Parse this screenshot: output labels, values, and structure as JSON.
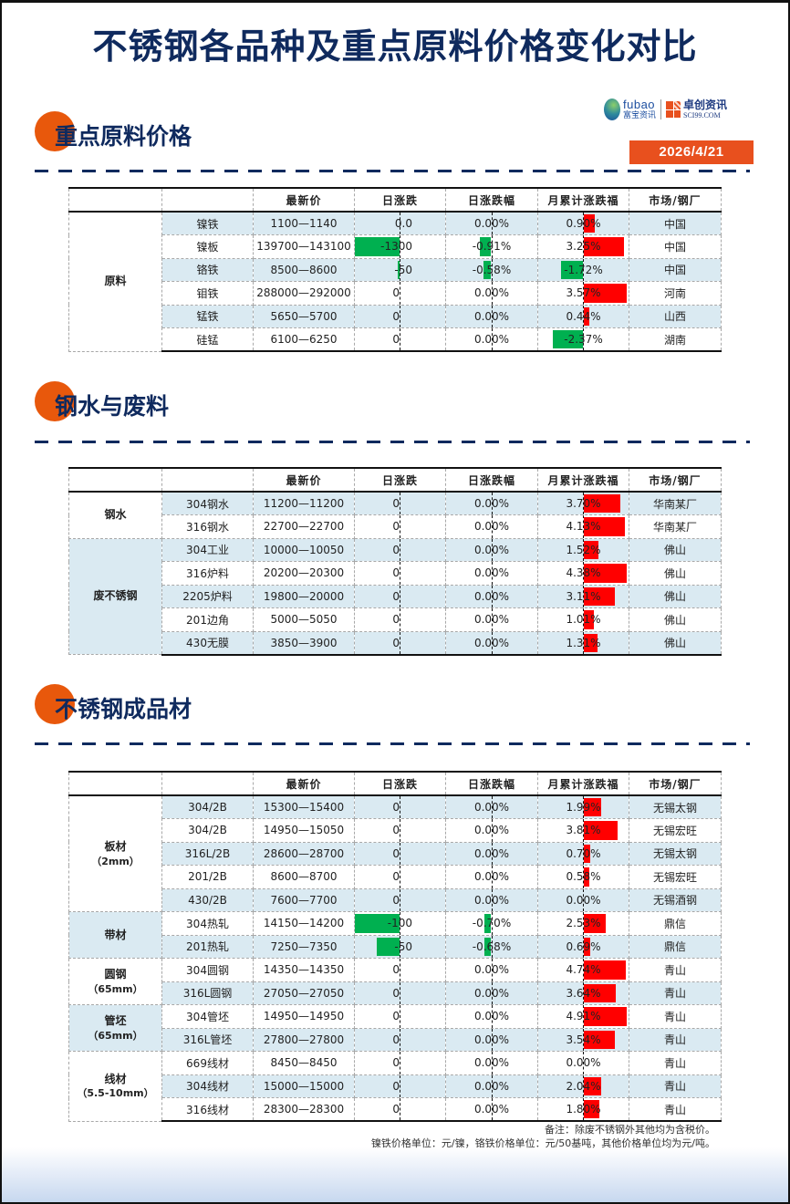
{
  "title": "不锈钢各品种及重点原料价格变化对比",
  "logos": {
    "fubao_en": "fubao",
    "fubao_cn": "富宝资讯",
    "sci_cn": "卓创资讯",
    "sci_en": "SCI99.COM"
  },
  "date": "2026/4/21",
  "colors": {
    "title": "#0f2a5e",
    "accent": "#e8501e",
    "shade": "#daeaf2",
    "neg_bar": "#00b050",
    "pos_bar": "#ff0000"
  },
  "headers": [
    "",
    "",
    "最新价",
    "日涨跌",
    "日涨跌幅",
    "月累计涨跌福",
    "市场/钢厂"
  ],
  "sections": [
    {
      "title": "重点原料价格",
      "groups": [
        {
          "name": "原料",
          "sub": "",
          "rows": [
            {
              "name": "镍铁",
              "price": "1100—1140",
              "dchg": "0.0",
              "dchg_bar": 0,
              "dpct": "0.00%",
              "dpct_bar": 0,
              "mpct": "0.90%",
              "mpct_bar": 12,
              "market": "中国"
            },
            {
              "name": "镍板",
              "price": "139700—143100",
              "dchg": "-1300",
              "dchg_bar": -49,
              "dpct": "-0.91%",
              "dpct_bar": -12,
              "mpct": "3.25%",
              "mpct_bar": 44,
              "market": "中国"
            },
            {
              "name": "铬铁",
              "price": "8500—8600",
              "dchg": "-50",
              "dchg_bar": -2,
              "dpct": "-0.58%",
              "dpct_bar": -8,
              "mpct": "-1.72%",
              "mpct_bar": -24,
              "market": "中国"
            },
            {
              "name": "钼铁",
              "price": "288000—292000",
              "dchg": "0",
              "dchg_bar": 0,
              "dpct": "0.00%",
              "dpct_bar": 0,
              "mpct": "3.57%",
              "mpct_bar": 47,
              "market": "河南"
            },
            {
              "name": "锰铁",
              "price": "5650—5700",
              "dchg": "0",
              "dchg_bar": 0,
              "dpct": "0.00%",
              "dpct_bar": 0,
              "mpct": "0.44%",
              "mpct_bar": 6,
              "market": "山西"
            },
            {
              "name": "硅锰",
              "price": "6100—6250",
              "dchg": "0",
              "dchg_bar": 0,
              "dpct": "0.00%",
              "dpct_bar": 0,
              "mpct": "-2.37%",
              "mpct_bar": -33,
              "market": "湖南"
            }
          ]
        }
      ]
    },
    {
      "title": "钢水与废料",
      "groups": [
        {
          "name": "钢水",
          "sub": "",
          "rows": [
            {
              "name": "304钢水",
              "price": "11200—11200",
              "dchg": "0",
              "dchg_bar": 0,
              "dpct": "0.00%",
              "dpct_bar": 0,
              "mpct": "3.70%",
              "mpct_bar": 40,
              "market": "华南某厂"
            },
            {
              "name": "316钢水",
              "price": "22700—22700",
              "dchg": "0",
              "dchg_bar": 0,
              "dpct": "0.00%",
              "dpct_bar": 0,
              "mpct": "4.13%",
              "mpct_bar": 45,
              "market": "华南某厂"
            }
          ]
        },
        {
          "name": "废不锈钢",
          "sub": "",
          "rows": [
            {
              "name": "304工业",
              "price": "10000—10050",
              "dchg": "0",
              "dchg_bar": 0,
              "dpct": "0.00%",
              "dpct_bar": 0,
              "mpct": "1.52%",
              "mpct_bar": 16,
              "market": "佛山"
            },
            {
              "name": "316炉料",
              "price": "20200—20300",
              "dchg": "0",
              "dchg_bar": 0,
              "dpct": "0.00%",
              "dpct_bar": 0,
              "mpct": "4.38%",
              "mpct_bar": 47,
              "market": "佛山"
            },
            {
              "name": "2205炉料",
              "price": "19800—20000",
              "dchg": "0",
              "dchg_bar": 0,
              "dpct": "0.00%",
              "dpct_bar": 0,
              "mpct": "3.11%",
              "mpct_bar": 34,
              "market": "佛山"
            },
            {
              "name": "201边角",
              "price": "5000—5050",
              "dchg": "0",
              "dchg_bar": 0,
              "dpct": "0.00%",
              "dpct_bar": 0,
              "mpct": "1.01%",
              "mpct_bar": 11,
              "market": "佛山"
            },
            {
              "name": "430无膜",
              "price": "3850—3900",
              "dchg": "0",
              "dchg_bar": 0,
              "dpct": "0.00%",
              "dpct_bar": 0,
              "mpct": "1.31%",
              "mpct_bar": 15,
              "market": "佛山"
            }
          ]
        }
      ]
    },
    {
      "title": "不锈钢成品材",
      "groups": [
        {
          "name": "板材",
          "sub": "（2mm）",
          "rows": [
            {
              "name": "304/2B",
              "price": "15300—15400",
              "dchg": "0",
              "dchg_bar": 0,
              "dpct": "0.00%",
              "dpct_bar": 0,
              "mpct": "1.99%",
              "mpct_bar": 19,
              "market": "无锡太钢"
            },
            {
              "name": "304/2B",
              "price": "14950—15050",
              "dchg": "0",
              "dchg_bar": 0,
              "dpct": "0.00%",
              "dpct_bar": 0,
              "mpct": "3.81%",
              "mpct_bar": 37,
              "market": "无锡宏旺"
            },
            {
              "name": "316L/2B",
              "price": "28600—28700",
              "dchg": "0",
              "dchg_bar": 0,
              "dpct": "0.00%",
              "dpct_bar": 0,
              "mpct": "0.70%",
              "mpct_bar": 7,
              "market": "无锡太钢"
            },
            {
              "name": "201/2B",
              "price": "8600—8700",
              "dchg": "0",
              "dchg_bar": 0,
              "dpct": "0.00%",
              "dpct_bar": 0,
              "mpct": "0.58%",
              "mpct_bar": 6,
              "market": "无锡宏旺"
            },
            {
              "name": "430/2B",
              "price": "7600—7700",
              "dchg": "0",
              "dchg_bar": 0,
              "dpct": "0.00%",
              "dpct_bar": 0,
              "mpct": "0.00%",
              "mpct_bar": 0,
              "market": "无锡酒钢"
            }
          ]
        },
        {
          "name": "带材",
          "sub": "",
          "rows": [
            {
              "name": "304热轧",
              "price": "14150—14200",
              "dchg": "-100",
              "dchg_bar": -49,
              "dpct": "-0.70%",
              "dpct_bar": -7,
              "mpct": "2.53%",
              "mpct_bar": 24,
              "market": "鼎信"
            },
            {
              "name": "201热轧",
              "price": "7250—7350",
              "dchg": "-50",
              "dchg_bar": -25,
              "dpct": "-0.68%",
              "dpct_bar": -7,
              "mpct": "0.69%",
              "mpct_bar": 7,
              "market": "鼎信"
            }
          ]
        },
        {
          "name": "圆钢",
          "sub": "（65mm）",
          "rows": [
            {
              "name": "304圆钢",
              "price": "14350—14350",
              "dchg": "0",
              "dchg_bar": 0,
              "dpct": "0.00%",
              "dpct_bar": 0,
              "mpct": "4.74%",
              "mpct_bar": 46,
              "market": "青山"
            },
            {
              "name": "316L圆钢",
              "price": "27050—27050",
              "dchg": "0",
              "dchg_bar": 0,
              "dpct": "0.00%",
              "dpct_bar": 0,
              "mpct": "3.64%",
              "mpct_bar": 35,
              "market": "青山"
            }
          ]
        },
        {
          "name": "管坯",
          "sub": "（65mm）",
          "rows": [
            {
              "name": "304管坯",
              "price": "14950—14950",
              "dchg": "0",
              "dchg_bar": 0,
              "dpct": "0.00%",
              "dpct_bar": 0,
              "mpct": "4.91%",
              "mpct_bar": 47,
              "market": "青山"
            },
            {
              "name": "316L管坯",
              "price": "27800—27800",
              "dchg": "0",
              "dchg_bar": 0,
              "dpct": "0.00%",
              "dpct_bar": 0,
              "mpct": "3.54%",
              "mpct_bar": 34,
              "market": "青山"
            }
          ]
        },
        {
          "name": "线材",
          "sub": "（5.5-10mm）",
          "rows": [
            {
              "name": "669线材",
              "price": "8450—8450",
              "dchg": "0",
              "dchg_bar": 0,
              "dpct": "0.00%",
              "dpct_bar": 0,
              "mpct": "0.00%",
              "mpct_bar": 0,
              "market": "青山"
            },
            {
              "name": "304线材",
              "price": "15000—15000",
              "dchg": "0",
              "dchg_bar": 0,
              "dpct": "0.00%",
              "dpct_bar": 0,
              "mpct": "2.04%",
              "mpct_bar": 19,
              "market": "青山"
            },
            {
              "name": "316线材",
              "price": "28300—28300",
              "dchg": "0",
              "dchg_bar": 0,
              "dpct": "0.00%",
              "dpct_bar": 0,
              "mpct": "1.80%",
              "mpct_bar": 17,
              "market": "青山"
            }
          ]
        }
      ]
    }
  ],
  "notes": [
    "备注：除废不锈钢外其他均为含税价。",
    "镍铁价格单位：元/镍，铬铁价格单位：元/50基吨，其他价格单位均为元/吨。"
  ]
}
